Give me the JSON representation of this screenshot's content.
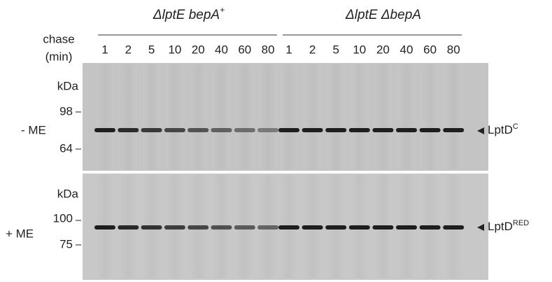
{
  "groups": [
    {
      "label": "ΔlptE bepA",
      "sup": "+"
    },
    {
      "label": "ΔlptE ΔbepA",
      "sup": ""
    }
  ],
  "chase_label": [
    "chase",
    "(min)"
  ],
  "lanes": [
    "1",
    "2",
    "5",
    "10",
    "20",
    "40",
    "60",
    "80"
  ],
  "panels": [
    {
      "condition": "- ME",
      "unit": "kDa",
      "markers": [
        "98",
        "64"
      ],
      "band_label": "LptD",
      "band_sup": "C"
    },
    {
      "condition": "+ ME",
      "unit": "kDa",
      "markers": [
        "100",
        "75"
      ],
      "band_label": "LptD",
      "band_sup": "RED"
    }
  ]
}
